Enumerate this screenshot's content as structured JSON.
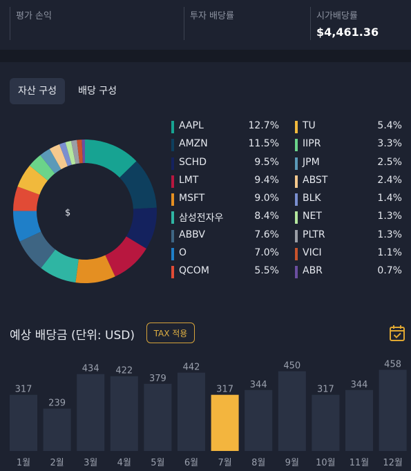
{
  "summary": {
    "eval_pl_label": "평가 손익",
    "eval_pl_value": "",
    "yield_label": "투자 배당률",
    "yield_value": "",
    "market_yield_label": "시가배당률",
    "market_yield_value": "$4,461.36"
  },
  "tabs": [
    {
      "label": "자산 구성",
      "active": true
    },
    {
      "label": "배당 구성",
      "active": false
    }
  ],
  "donut": {
    "center_label": "$",
    "slices": [
      {
        "name": "AAPL",
        "pct": 12.7,
        "pct_label": "12.7%",
        "color": "#17a392"
      },
      {
        "name": "AMZN",
        "pct": 11.5,
        "pct_label": "11.5%",
        "color": "#0e3f5e"
      },
      {
        "name": "SCHD",
        "pct": 9.5,
        "pct_label": "9.5%",
        "color": "#14225e"
      },
      {
        "name": "LMT",
        "pct": 9.4,
        "pct_label": "9.4%",
        "color": "#b8173f"
      },
      {
        "name": "MSFT",
        "pct": 9.0,
        "pct_label": "9.0%",
        "color": "#e48f22"
      },
      {
        "name": "삼성전자우",
        "pct": 8.4,
        "pct_label": "8.4%",
        "color": "#2fb5a3"
      },
      {
        "name": "ABBV",
        "pct": 7.6,
        "pct_label": "7.6%",
        "color": "#3e6583"
      },
      {
        "name": "O",
        "pct": 7.0,
        "pct_label": "7.0%",
        "color": "#1f7fc8"
      },
      {
        "name": "QCOM",
        "pct": 5.5,
        "pct_label": "5.5%",
        "color": "#e14b36"
      },
      {
        "name": "TU",
        "pct": 5.4,
        "pct_label": "5.4%",
        "color": "#f1b93c"
      },
      {
        "name": "IIPR",
        "pct": 3.3,
        "pct_label": "3.3%",
        "color": "#6bd48a"
      },
      {
        "name": "JPM",
        "pct": 2.5,
        "pct_label": "2.5%",
        "color": "#5b9ab8"
      },
      {
        "name": "ABST",
        "pct": 2.4,
        "pct_label": "2.4%",
        "color": "#f5c98e"
      },
      {
        "name": "BLK",
        "pct": 1.4,
        "pct_label": "1.4%",
        "color": "#7a8fd0"
      },
      {
        "name": "NET",
        "pct": 1.3,
        "pct_label": "1.3%",
        "color": "#b4e79e"
      },
      {
        "name": "PLTR",
        "pct": 1.3,
        "pct_label": "1.3%",
        "color": "#9a9ea6"
      },
      {
        "name": "VICI",
        "pct": 1.1,
        "pct_label": "1.1%",
        "color": "#c8532c"
      },
      {
        "name": "ABR",
        "pct": 0.7,
        "pct_label": "0.7%",
        "color": "#6b4fa0"
      }
    ]
  },
  "dividends": {
    "title": "예상 배당금 (단위: USD)",
    "tax_button": "TAX 적용",
    "calendar_icon": "calendar-check-icon",
    "highlight_color": "#f3b53e",
    "bar_color": "#2a3244",
    "chart_data": {
      "type": "bar",
      "categories": [
        "1월",
        "2월",
        "3월",
        "4월",
        "5월",
        "6월",
        "7월",
        "8월",
        "9월",
        "10월",
        "11월",
        "12월"
      ],
      "values": [
        317,
        239,
        434,
        422,
        379,
        442,
        317,
        344,
        450,
        317,
        344,
        458
      ],
      "highlight_index": 6,
      "ylim": [
        0,
        460
      ]
    }
  }
}
